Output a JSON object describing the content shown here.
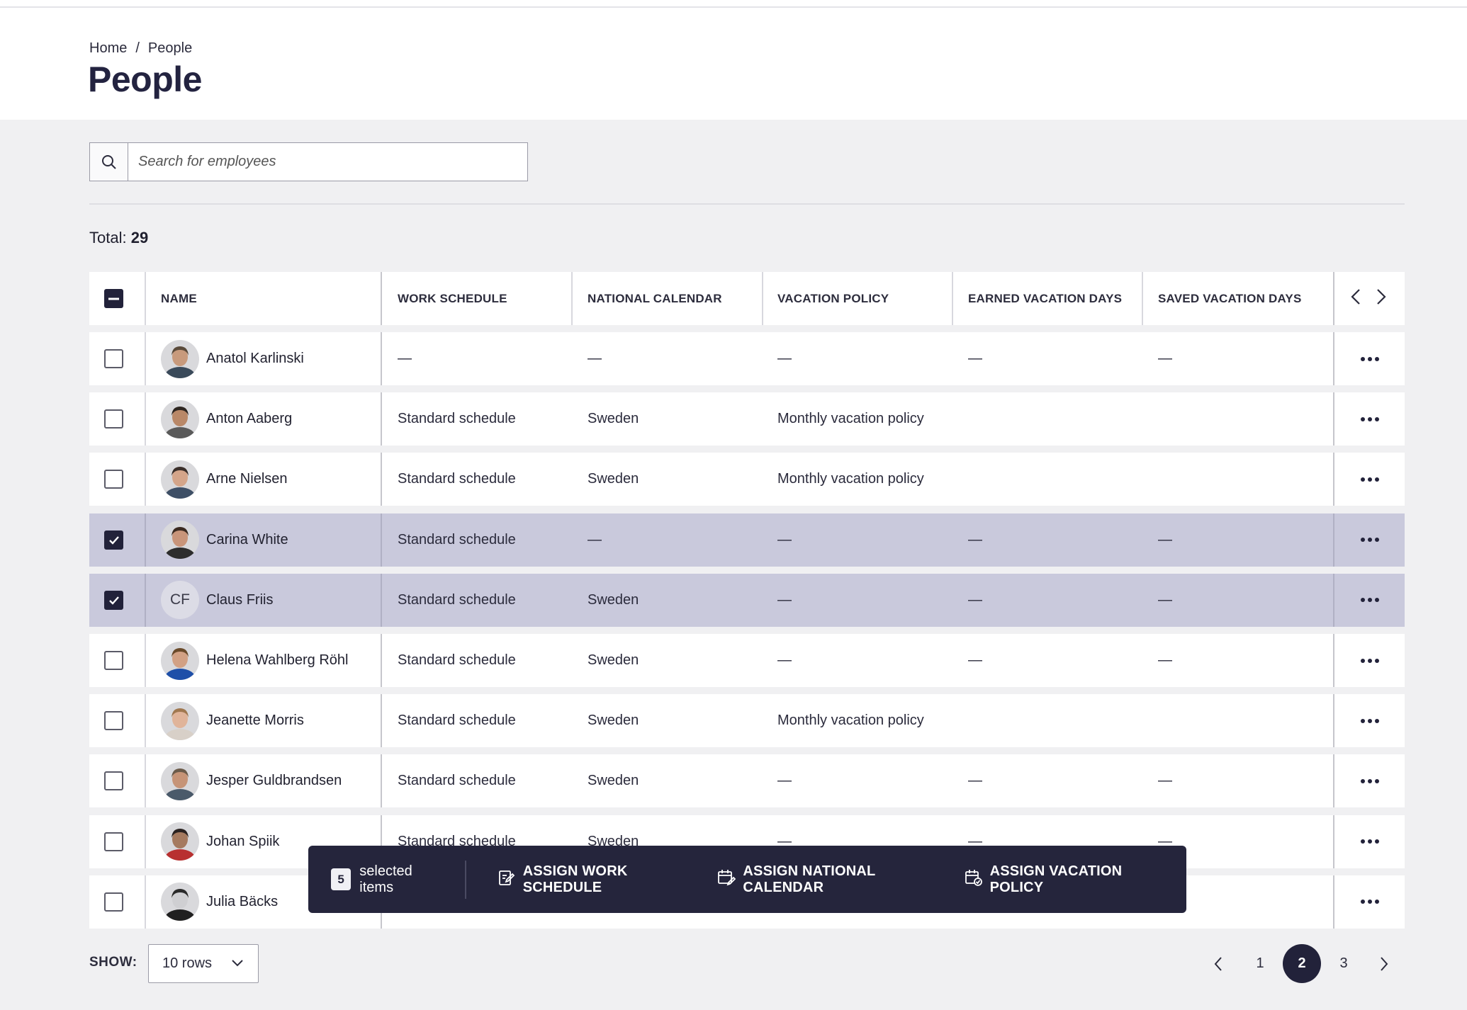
{
  "breadcrumb": {
    "home": "Home",
    "separator": "/",
    "current": "People"
  },
  "page_title": "People",
  "search": {
    "placeholder": "Search for employees"
  },
  "total": {
    "label": "Total:",
    "value": "29"
  },
  "columns": [
    "NAME",
    "WORK SCHEDULE",
    "NATIONAL CALENDAR",
    "VACATION POLICY",
    "EARNED VACATION DAYS",
    "SAVED VACATION DAYS"
  ],
  "rows": [
    {
      "name": "Anatol Karlinski",
      "checked": false,
      "avatar": "photo",
      "work_schedule": "—",
      "national_calendar": "—",
      "vacation_policy": "—",
      "earned": "—",
      "saved": "—"
    },
    {
      "name": "Anton Aaberg",
      "checked": false,
      "avatar": "photo",
      "work_schedule": "Standard schedule",
      "national_calendar": "Sweden",
      "vacation_policy": "Monthly vacation policy",
      "earned": "",
      "saved": ""
    },
    {
      "name": "Arne Nielsen",
      "checked": false,
      "avatar": "photo",
      "work_schedule": "Standard schedule",
      "national_calendar": "Sweden",
      "vacation_policy": "Monthly vacation policy",
      "earned": "",
      "saved": ""
    },
    {
      "name": "Carina White",
      "checked": true,
      "avatar": "photo",
      "work_schedule": "Standard schedule",
      "national_calendar": "—",
      "vacation_policy": "—",
      "earned": "—",
      "saved": "—"
    },
    {
      "name": "Claus Friis",
      "checked": true,
      "avatar": "initials",
      "initials": "CF",
      "work_schedule": "Standard schedule",
      "national_calendar": "Sweden",
      "vacation_policy": "—",
      "earned": "—",
      "saved": "—"
    },
    {
      "name": "Helena Wahlberg Röhl",
      "checked": false,
      "avatar": "photo",
      "work_schedule": "Standard schedule",
      "national_calendar": "Sweden",
      "vacation_policy": "—",
      "earned": "—",
      "saved": "—"
    },
    {
      "name": "Jeanette Morris",
      "checked": false,
      "avatar": "photo",
      "work_schedule": "Standard schedule",
      "national_calendar": "Sweden",
      "vacation_policy": "Monthly vacation policy",
      "earned": "",
      "saved": ""
    },
    {
      "name": "Jesper Guldbrandsen",
      "checked": false,
      "avatar": "photo",
      "work_schedule": "Standard schedule",
      "national_calendar": "Sweden",
      "vacation_policy": "—",
      "earned": "—",
      "saved": "—"
    },
    {
      "name": "Johan Spiik",
      "checked": false,
      "avatar": "photo",
      "work_schedule": "Standard schedule",
      "national_calendar": "Sweden",
      "vacation_policy": "—",
      "earned": "—",
      "saved": "—"
    },
    {
      "name": "Julia Bäcks",
      "checked": false,
      "avatar": "photo",
      "work_schedule": "",
      "national_calendar": "",
      "vacation_policy": "",
      "earned": "",
      "saved": ""
    }
  ],
  "selection_toolbar": {
    "count": "5",
    "label": "selected items",
    "actions": [
      "ASSIGN WORK SCHEDULE",
      "ASSIGN NATIONAL CALENDAR",
      "ASSIGN VACATION POLICY"
    ]
  },
  "footer": {
    "show_label": "SHOW:",
    "rows_option": "10 rows",
    "pages": [
      "1",
      "2",
      "3"
    ],
    "current_page": "2"
  },
  "colors": {
    "accent": "#22223a",
    "selected_row": "#c9c9dc",
    "background": "#f0f0f2"
  }
}
